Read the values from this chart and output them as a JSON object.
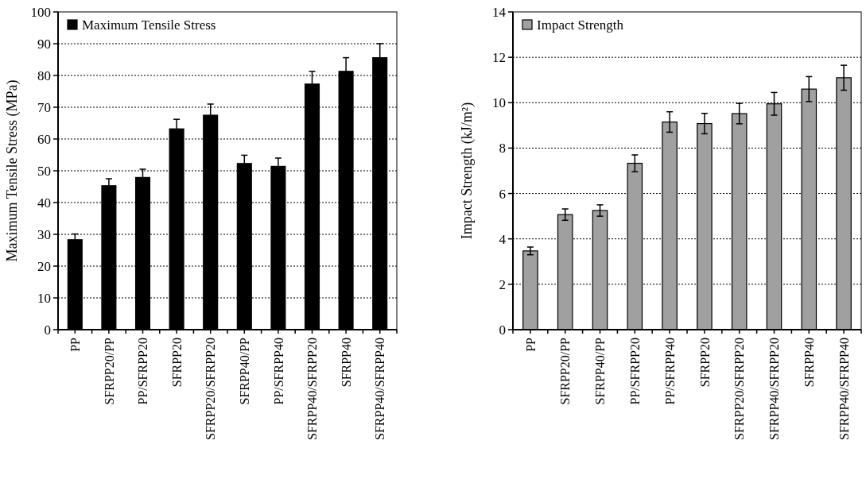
{
  "chart_data": [
    {
      "type": "bar",
      "ylabel": "Maximum Tensile Stress (MPa)",
      "categories": [
        "PP",
        "SFRPP20/PP",
        "PP/SFRPP20",
        "SFRPP20",
        "SFRPP20/SFRPP20",
        "SFRPP40/PP",
        "PP/SFRPP40",
        "SFRPP40/SFRPP20",
        "SFRPP40",
        "SFRPP40/SFRPP40"
      ],
      "series": [
        {
          "name": "Maximum Tensile Stress",
          "color": "#000000",
          "values": [
            28.3,
            45.3,
            47.9,
            63.2,
            67.5,
            52.3,
            51.4,
            77.3,
            81.3,
            85.6
          ],
          "errors": [
            [
              28.3,
              30.1
            ],
            [
              45.3,
              47.5
            ],
            [
              47.9,
              50.5
            ],
            [
              63.2,
              66.2
            ],
            [
              67.5,
              71.0
            ],
            [
              52.3,
              54.9
            ],
            [
              51.4,
              54.0
            ],
            [
              77.3,
              81.3
            ],
            [
              81.3,
              85.6
            ],
            [
              85.6,
              90.0
            ]
          ]
        }
      ],
      "ylim": [
        0,
        100
      ],
      "yticks": [
        0,
        10,
        20,
        30,
        40,
        50,
        60,
        70,
        80,
        90,
        100
      ],
      "grid": "y",
      "legend": "top left"
    },
    {
      "type": "bar",
      "ylabel": "Impact Strength (kJ/m²)",
      "categories": [
        "PP",
        "SFRPP20/PP",
        "SFRPP40/PP",
        "PP/SFRPP20",
        "PP/SFRPP40",
        "SFRPP20",
        "SFRPP20/SFRPP20",
        "SFRPP40/SFRPP20",
        "SFRPP40",
        "SFRPP40/SFRPP40"
      ],
      "series": [
        {
          "name": "Impact Strength",
          "color": "#a0a0a0",
          "values": [
            3.47,
            5.07,
            5.25,
            7.33,
            9.15,
            9.08,
            9.52,
            9.95,
            10.6,
            11.1
          ],
          "errors": [
            0.17,
            0.25,
            0.25,
            0.37,
            0.45,
            0.45,
            0.45,
            0.5,
            0.55,
            0.55
          ]
        }
      ],
      "ylim": [
        0,
        14
      ],
      "yticks": [
        0,
        2,
        4,
        6,
        8,
        10,
        12,
        14
      ],
      "grid": "y",
      "legend": "top left"
    }
  ]
}
